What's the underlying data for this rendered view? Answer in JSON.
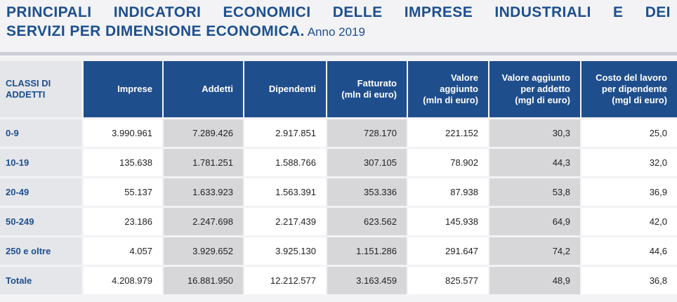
{
  "title": {
    "line1_words": [
      "PRINCIPALI",
      "INDICATORI",
      "ECONOMICI",
      "DELLE",
      "IMPRESE",
      "INDUSTRIALI",
      "E",
      "DEI"
    ],
    "line2": "SERVIZI PER DIMENSIONE ECONOMICA.",
    "year": "Anno 2019"
  },
  "table": {
    "corner_header": [
      "CLASSI DI",
      "ADDETTI"
    ],
    "columns": [
      {
        "lines": [
          "Imprese"
        ]
      },
      {
        "lines": [
          "Addetti"
        ]
      },
      {
        "lines": [
          "Dipendenti"
        ]
      },
      {
        "lines": [
          "Fatturato",
          "(mln di euro)"
        ]
      },
      {
        "lines": [
          "Valore",
          "aggiunto",
          "(mln di euro)"
        ]
      },
      {
        "lines": [
          "Valore aggiunto",
          "per addetto",
          "(mgl di euro)"
        ]
      },
      {
        "lines": [
          "Costo del lavoro",
          "per dipendente",
          "(mgl di euro)"
        ]
      }
    ],
    "rows": [
      {
        "label": "0-9",
        "values": [
          "3.990.961",
          "7.289.426",
          "2.917.851",
          "728.170",
          "221.152",
          "30,3",
          "25,0"
        ]
      },
      {
        "label": "10-19",
        "values": [
          "135.638",
          "1.781.251",
          "1.588.766",
          "307.105",
          "78.902",
          "44,3",
          "32,0"
        ]
      },
      {
        "label": "20-49",
        "values": [
          "55.137",
          "1.633.923",
          "1.563.391",
          "353.336",
          "87.938",
          "53,8",
          "36,9"
        ]
      },
      {
        "label": "50-249",
        "values": [
          "23.186",
          "2.247.698",
          "2.217.439",
          "623.562",
          "145.938",
          "64,9",
          "42,0"
        ]
      },
      {
        "label": "250 e oltre",
        "values": [
          "4.057",
          "3.929.652",
          "3.925.130",
          "1.151.286",
          "291.647",
          "74,2",
          "44,6"
        ]
      },
      {
        "label": "Totale",
        "values": [
          "4.208.979",
          "16.881.950",
          "12.212.577",
          "3.163.459",
          "825.577",
          "48,9",
          "36,8"
        ]
      }
    ]
  }
}
